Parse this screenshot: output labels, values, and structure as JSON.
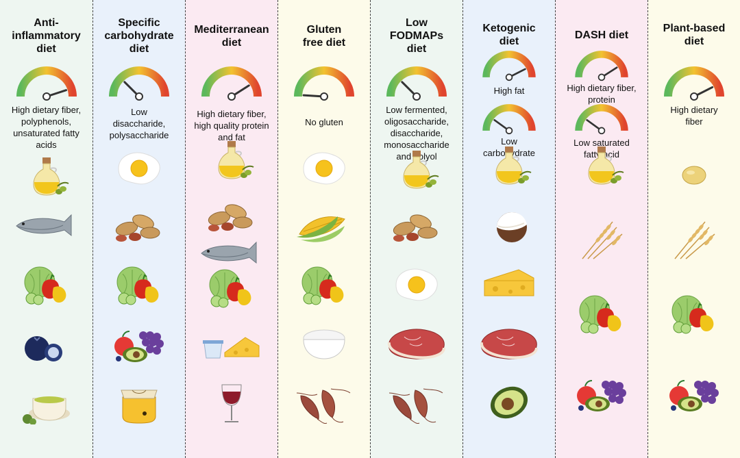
{
  "colors": {
    "mint": "#eef6f1",
    "blue": "#e9f1fb",
    "pink": "#fbeaf2",
    "cream": "#fdfbea",
    "gauge_green": "#5cb85c",
    "gauge_yellow": "#f2c230",
    "gauge_red": "#e0452e"
  },
  "diets": [
    {
      "title": "Anti-\ninflammatory\ndiet",
      "bg": "mint",
      "gauges": [
        {
          "level": 0.9,
          "label": "High dietary fiber,\npolyphenols,\nunsaturated fatty\nacids"
        }
      ],
      "foods": [
        "olive-oil-bottle",
        "fish",
        "vegetables",
        "blueberry",
        "green-tea"
      ]
    },
    {
      "title": "Specific\ncarbohydrate\ndiet",
      "bg": "blue",
      "gauges": [
        {
          "level": 0.25,
          "label": "Low\ndisaccharide,\npolysaccharide"
        }
      ],
      "foods": [
        "fried-egg",
        "peanuts",
        "vegetables",
        "fruits",
        "honey-jar"
      ]
    },
    {
      "title": "Mediterranean\ndiet",
      "bg": "pink",
      "gauges": [
        {
          "level": 0.82,
          "label": "High dietary fiber,\nhigh quality protein\nand fat"
        }
      ],
      "foods": [
        "olive-oil-bottle",
        "peanuts",
        "fish",
        "vegetables",
        "yogurt-cheese",
        "red-wine"
      ]
    },
    {
      "title": "Gluten\nfree diet",
      "bg": "cream",
      "gauges": [
        {
          "level": 0.02,
          "label": "No gluten"
        }
      ],
      "foods": [
        "fried-egg",
        "corn",
        "vegetables",
        "rice-bowl",
        "sweet-potato"
      ]
    },
    {
      "title": "Low\nFODMAPs\ndiet",
      "bg": "mint",
      "gauges": [
        {
          "level": 0.25,
          "label": "Low fermented,\noligosaccharide,\ndisaccharide,\nmonosaccharide\nand polyol"
        }
      ],
      "foods": [
        "olive-oil-bottle",
        "peanuts",
        "fried-egg",
        "red-meat",
        "sweet-potato"
      ]
    },
    {
      "title": "Ketogenic\ndiet",
      "bg": "blue",
      "gauges": [
        {
          "level": 0.85,
          "label": "High fat"
        },
        {
          "level": 0.2,
          "label": "Low\ncarbohydrate"
        }
      ],
      "foods": [
        "olive-oil-bottle",
        "coconut",
        "cheese",
        "red-meat",
        "avocado"
      ]
    },
    {
      "title": "DASH diet",
      "bg": "pink",
      "gauges": [
        {
          "level": 0.82,
          "label": "High dietary fiber,\nprotein"
        },
        {
          "level": 0.2,
          "label": "Low saturated\nfatty acid"
        }
      ],
      "foods": [
        "olive-oil-bottle",
        "wheat",
        "vegetables",
        "fruits"
      ]
    },
    {
      "title": "Plant-based\ndiet",
      "bg": "cream",
      "gauges": [
        {
          "level": 0.85,
          "label": "High dietary\nfiber"
        }
      ],
      "foods": [
        "soybean",
        "wheat",
        "vegetables",
        "fruits"
      ]
    }
  ]
}
